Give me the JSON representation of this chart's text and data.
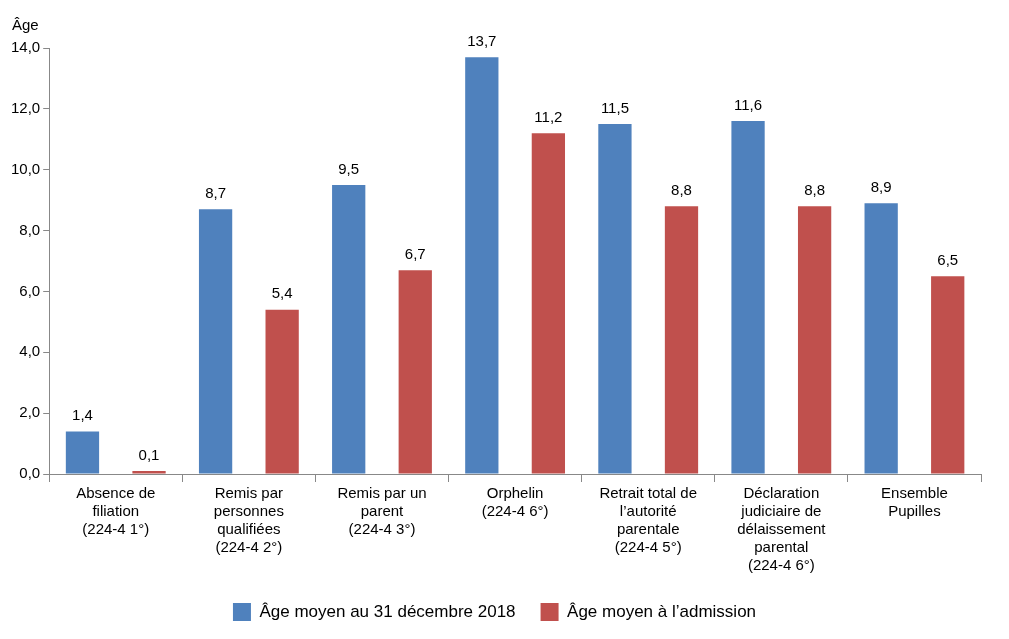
{
  "chart_data": {
    "type": "bar",
    "ylabel": "Âge",
    "categories": [
      "Absence de filiation (224-4 1°)",
      "Remis par personnes qualifiées (224-4 2°)",
      "Remis par un parent (224-4 3°)",
      "Orphelin (224-4 6°)",
      "Retrait total de l’autorité parentale (224-4 5°)",
      "Déclaration judiciaire de délaissement parental (224-4 6°)",
      "Ensemble Pupilles"
    ],
    "series": [
      {
        "name": "Âge moyen au 31 décembre 2018",
        "color": "#4f81bd",
        "values": [
          1.4,
          8.7,
          9.5,
          13.7,
          11.5,
          11.6,
          8.9
        ],
        "value_labels": [
          "1,4",
          "8,7",
          "9,5",
          "13,7",
          "11,5",
          "11,6",
          "8,9"
        ]
      },
      {
        "name": "Âge moyen à l’admission",
        "color": "#c0504d",
        "values": [
          0.1,
          5.4,
          6.7,
          11.2,
          8.8,
          8.8,
          6.5
        ],
        "value_labels": [
          "0,1",
          "5,4",
          "6,7",
          "11,2",
          "8,8",
          "8,8",
          "6,5"
        ]
      }
    ],
    "ylim": [
      0,
      14
    ],
    "yticks": [
      {
        "value": 0,
        "label": "0,0"
      },
      {
        "value": 2,
        "label": "2,0"
      },
      {
        "value": 4,
        "label": "4,0"
      },
      {
        "value": 6,
        "label": "6,0"
      },
      {
        "value": 8,
        "label": "8,0"
      },
      {
        "value": 10,
        "label": "10,0"
      },
      {
        "value": 12,
        "label": "12,0"
      },
      {
        "value": 14,
        "label": "14,0"
      }
    ],
    "grid": false,
    "legend": "bottom"
  }
}
